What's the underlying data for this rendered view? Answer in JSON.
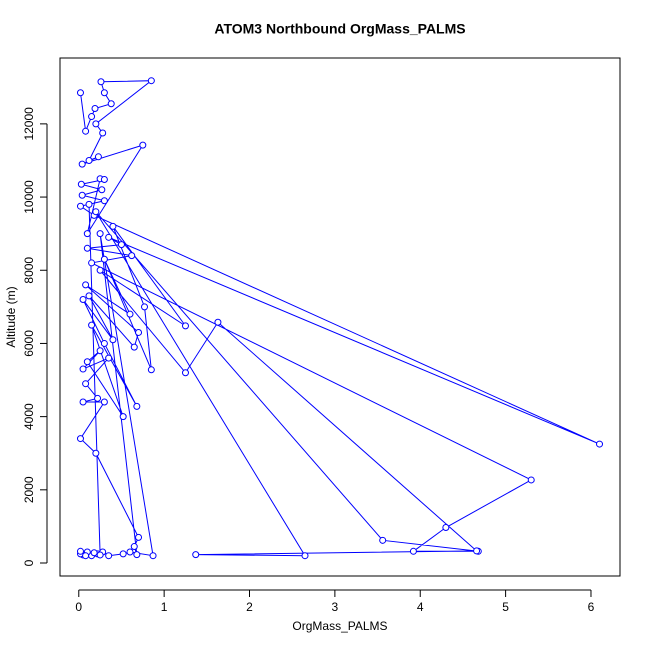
{
  "chart_data": {
    "type": "line",
    "title": "ATOM3 Northbound OrgMass_PALMS",
    "x_label": "OrgMass_PALMS",
    "y_label": "Altitude (m)",
    "color": "#0000ff",
    "markers": true,
    "xlim": [
      -0.22,
      6.34
    ],
    "ylim": [
      -355,
      13800
    ],
    "xticks": [
      0,
      1,
      2,
      3,
      4,
      5,
      6
    ],
    "yticks": [
      0,
      2000,
      4000,
      6000,
      8000,
      10000,
      12000
    ],
    "x": [
      0.02,
      0.08,
      0.15,
      0.19,
      0.38,
      0.3,
      0.26,
      0.85,
      0.2,
      0.28,
      0.12,
      0.23,
      0.04,
      0.75,
      0.1,
      0.25,
      0.3,
      0.03,
      0.27,
      0.04,
      0.3,
      0.02,
      0.18,
      6.1,
      0.35,
      0.5,
      0.1,
      0.62,
      0.15,
      5.3,
      4.3,
      3.92,
      4.68,
      3.56,
      0.2,
      2.65,
      1.37,
      4.66,
      1.63,
      1.25,
      0.25,
      1.25,
      0.4,
      0.77,
      0.85,
      0.3,
      0.6,
      0.08,
      0.7,
      0.65,
      0.12,
      0.4,
      0.05,
      0.3,
      0.68,
      0.15,
      0.52,
      0.1,
      0.25,
      0.05,
      0.35,
      0.08,
      0.22,
      0.05,
      0.3,
      0.02,
      0.2,
      0.7,
      0.65,
      0.68,
      0.25,
      0.87,
      0.6,
      0.52,
      0.35,
      0.28,
      0.22,
      0.15,
      0.1,
      0.05,
      0.02,
      0.02,
      0.08,
      0.18,
      0.25,
      0.12
    ],
    "values": [
      12850,
      11800,
      12200,
      12420,
      12550,
      12850,
      13150,
      13180,
      12000,
      11750,
      11000,
      11100,
      10900,
      11420,
      9000,
      10500,
      10480,
      10350,
      10200,
      10050,
      9900,
      9750,
      9500,
      3250,
      8900,
      8700,
      8600,
      8400,
      8200,
      2270,
      970,
      320,
      320,
      620,
      9600,
      200,
      230,
      330,
      6580,
      5200,
      8000,
      6480,
      9200,
      7000,
      5280,
      8300,
      6800,
      7600,
      6300,
      5900,
      7300,
      6100,
      7200,
      6000,
      4280,
      6500,
      4000,
      5500,
      5800,
      5300,
      5600,
      4900,
      4500,
      4400,
      4400,
      3400,
      3000,
      700,
      450,
      230,
      9000,
      200,
      300,
      250,
      200,
      300,
      250,
      200,
      300,
      220,
      250,
      320,
      200,
      280,
      220,
      9800
    ]
  }
}
